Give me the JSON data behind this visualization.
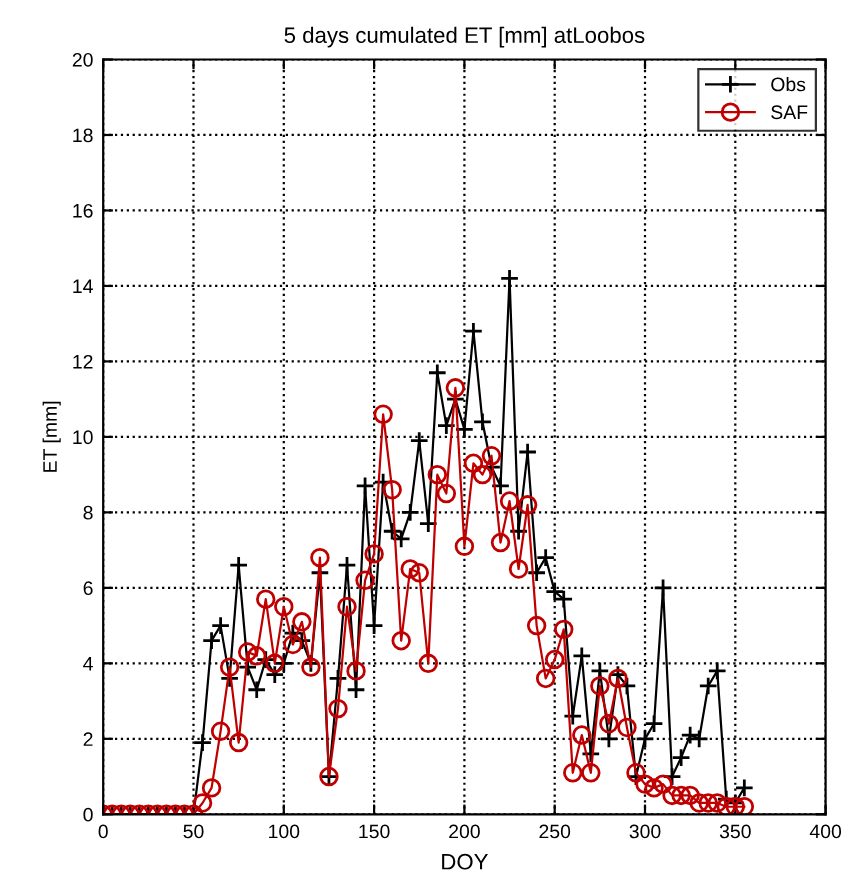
{
  "chart_data": {
    "type": "line",
    "title": "5 days cumulated ET [mm] atLoobos",
    "xlabel": "DOY",
    "ylabel": "ET [mm]",
    "x": [
      0,
      5,
      10,
      15,
      20,
      25,
      30,
      35,
      40,
      45,
      50,
      55,
      60,
      65,
      70,
      75,
      80,
      85,
      90,
      95,
      100,
      105,
      110,
      115,
      120,
      125,
      130,
      135,
      140,
      145,
      150,
      155,
      160,
      165,
      170,
      175,
      180,
      185,
      190,
      195,
      200,
      205,
      210,
      215,
      220,
      225,
      230,
      235,
      240,
      245,
      250,
      255,
      260,
      265,
      270,
      275,
      280,
      285,
      290,
      295,
      300,
      305,
      310,
      315,
      320,
      325,
      330,
      335,
      340,
      345,
      350,
      355
    ],
    "series": [
      {
        "name": "Obs",
        "color": "#000000",
        "marker": "cross",
        "values": [
          0,
          0,
          0,
          0,
          0,
          0,
          0,
          0,
          0,
          0,
          0,
          1.9,
          4.6,
          5.0,
          3.6,
          6.6,
          3.9,
          3.3,
          4.1,
          3.7,
          4.0,
          4.8,
          4.6,
          4.0,
          6.4,
          1.0,
          3.6,
          6.6,
          3.3,
          8.7,
          5.0,
          8.8,
          7.5,
          7.3,
          8.0,
          9.9,
          7.7,
          11.7,
          10.3,
          11.0,
          10.2,
          12.8,
          10.4,
          9.2,
          8.7,
          14.2,
          7.5,
          9.6,
          6.4,
          6.8,
          5.9,
          5.7,
          2.6,
          4.2,
          1.6,
          3.8,
          2.0,
          3.7,
          3.4,
          1.0,
          2.0,
          2.4,
          6.0,
          1.0,
          1.5,
          2.1,
          2.0,
          3.4,
          3.8,
          0.4,
          0.3,
          0.7
        ]
      },
      {
        "name": "SAF",
        "color": "#c00000",
        "marker": "circle",
        "values": [
          0,
          0,
          0,
          0,
          0,
          0,
          0,
          0,
          0,
          0,
          0,
          0.3,
          0.7,
          2.2,
          3.9,
          1.9,
          4.3,
          4.2,
          5.7,
          4.0,
          5.5,
          4.5,
          5.1,
          3.9,
          6.8,
          1.0,
          2.8,
          5.5,
          3.8,
          6.2,
          6.9,
          10.6,
          8.6,
          4.6,
          6.5,
          6.4,
          4.0,
          9.0,
          8.5,
          11.3,
          7.1,
          9.3,
          9.0,
          9.5,
          7.2,
          8.3,
          6.5,
          8.2,
          5.0,
          3.6,
          4.1,
          4.9,
          1.1,
          2.1,
          1.1,
          3.4,
          2.4,
          3.6,
          2.3,
          1.1,
          0.8,
          0.7,
          0.8,
          0.5,
          0.5,
          0.5,
          0.3,
          0.3,
          0.3,
          0.2,
          0.2,
          0.2
        ]
      }
    ],
    "xlim": [
      0,
      400
    ],
    "xticks": [
      0,
      50,
      100,
      150,
      200,
      250,
      300,
      350,
      400
    ],
    "ylim": [
      0,
      20
    ],
    "yticks": [
      0,
      2,
      4,
      6,
      8,
      10,
      12,
      14,
      16,
      18,
      20
    ],
    "grid": true,
    "legend": "top right"
  }
}
